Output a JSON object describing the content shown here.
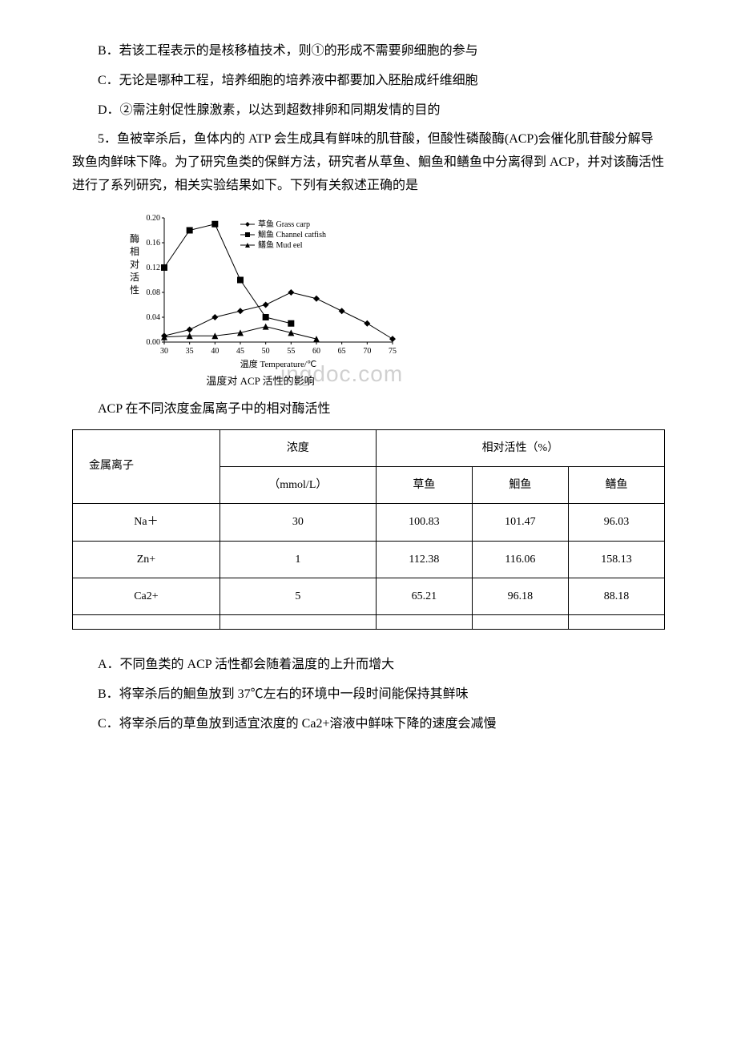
{
  "options": {
    "b": "B．若该工程表示的是核移植技术，则①的形成不需要卵细胞的参与",
    "c": "C．无论是哪种工程，培养细胞的培养液中都要加入胚胎成纤维细胞",
    "d": "D．②需注射促性腺激素，以达到超数排卵和同期发情的目的"
  },
  "q5": {
    "stem": "5．鱼被宰杀后，鱼体内的 ATP 会生成具有鲜味的肌苷酸，但酸性磷酸酶(ACP)会催化肌苷酸分解导致鱼肉鲜味下降。为了研究鱼类的保鲜方法，研究者从草鱼、鮰鱼和鳝鱼中分离得到 ACP，并对该酶活性进行了系列研究，相关实验结果如下。下列有关叙述正确的是",
    "opt_a": "A．不同鱼类的 ACP 活性都会随着温度的上升而增大",
    "opt_b": "B．将宰杀后的鮰鱼放到 37℃左右的环境中一段时间能保持其鲜味",
    "opt_c": "C．将宰杀后的草鱼放到适宜浓度的 Ca2+溶液中鲜味下降的速度会减慢"
  },
  "chart": {
    "y_label": "酶相对活性",
    "x_label": "温度 Temperature/℃",
    "caption": "温度对 ACP 活性的影响",
    "legend": {
      "s1": "草鱼 Grass carp",
      "s2": "鮰鱼 Channel catfish",
      "s3": "鳝鱼 Mud eel"
    },
    "y_ticks": [
      "0.00",
      "0.04",
      "0.08",
      "0.12",
      "0.16",
      "0.20"
    ],
    "x_ticks": [
      "30",
      "35",
      "40",
      "45",
      "50",
      "55",
      "60",
      "65",
      "70",
      "75"
    ],
    "ylim": [
      0,
      0.2
    ],
    "xlim": [
      30,
      75
    ],
    "series": {
      "grass_carp": {
        "marker": "diamond",
        "color": "#000000",
        "x": [
          30,
          35,
          40,
          45,
          50,
          55,
          60,
          65,
          70,
          75
        ],
        "y": [
          0.01,
          0.02,
          0.04,
          0.05,
          0.06,
          0.08,
          0.07,
          0.05,
          0.03,
          0.005
        ]
      },
      "catfish": {
        "marker": "square",
        "color": "#000000",
        "x": [
          30,
          35,
          40,
          45,
          50,
          55
        ],
        "y": [
          0.12,
          0.18,
          0.19,
          0.1,
          0.04,
          0.03
        ]
      },
      "mudeel": {
        "marker": "triangle",
        "color": "#000000",
        "x": [
          30,
          35,
          40,
          45,
          50,
          55,
          60
        ],
        "y": [
          0.008,
          0.01,
          0.01,
          0.015,
          0.025,
          0.015,
          0.005
        ]
      }
    },
    "line_width": 1,
    "marker_size": 4,
    "background_color": "#ffffff"
  },
  "table": {
    "title": "ACP 在不同浓度金属离子中的相对酶活性",
    "head_ion": "金属离子",
    "head_conc": "浓度（mmol/L）",
    "head_activity": "相对活性（%）",
    "cols": [
      "草鱼",
      "鮰鱼",
      "鳝鱼"
    ],
    "rows": [
      {
        "ion": "Na＋",
        "conc": "30",
        "v": [
          "100.83",
          "101.47",
          "96.03"
        ]
      },
      {
        "ion": "Zn+",
        "conc": "1",
        "v": [
          "112.38",
          "116.06",
          "158.13"
        ]
      },
      {
        "ion": "Ca2+",
        "conc": "5",
        "v": [
          "65.21",
          "96.18",
          "88.18"
        ]
      }
    ]
  },
  "watermark": "ingdoc.com"
}
